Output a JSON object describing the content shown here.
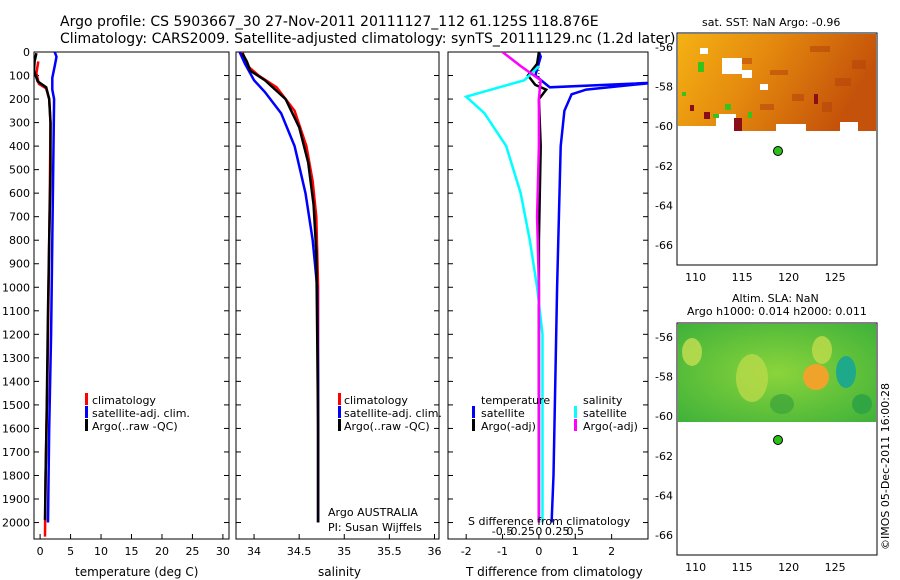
{
  "header": {
    "line1": "Argo profile: CS 5903667_30 27-Nov-2011 20111127_112 61.125S 118.876E",
    "line2": "Climatology: CARS2009. Satellite-adjusted climatology: synTS_20111129.nc (1.2d later)"
  },
  "colors": {
    "climatology": "#ff0000",
    "satellite": "#0000ff",
    "argo": "#000000",
    "sal_satellite": "#00ffff",
    "sal_argo": "#ff00ff"
  },
  "chart_data": [
    {
      "type": "line",
      "title": "",
      "xlabel": "temperature (deg C)",
      "ylabel": "",
      "xlim": [
        -1,
        31
      ],
      "ylim": [
        2070,
        0
      ],
      "xticks": [
        "0",
        "5",
        "10",
        "15",
        "20",
        "25",
        "30"
      ],
      "yticks": [
        "0",
        "100",
        "200",
        "300",
        "400",
        "500",
        "600",
        "700",
        "800",
        "900",
        "1000",
        "1100",
        "1200",
        "1300",
        "1400",
        "1500",
        "1600",
        "1700",
        "1800",
        "1900",
        "2000"
      ],
      "legend": [
        "climatology",
        "satellite-adj. clim.",
        "Argo(..raw -QC)"
      ],
      "series": [
        {
          "name": "climatology",
          "color": "#ff0000",
          "points": [
            [
              -0.3,
              40
            ],
            [
              -0.6,
              90
            ],
            [
              -0.2,
              135
            ],
            [
              1.0,
              155
            ],
            [
              1.5,
              200
            ],
            [
              1.7,
              300
            ],
            [
              1.6,
              600
            ],
            [
              1.4,
              1000
            ],
            [
              1.2,
              1400
            ],
            [
              0.9,
              1800
            ],
            [
              0.8,
              2060
            ]
          ]
        },
        {
          "name": "satellite-adj. clim.",
          "color": "#0000ff",
          "points": [
            [
              2.4,
              0
            ],
            [
              2.7,
              20
            ],
            [
              2.4,
              60
            ],
            [
              2.0,
              110
            ],
            [
              2.0,
              160
            ],
            [
              2.3,
              200
            ],
            [
              2.2,
              400
            ],
            [
              2.0,
              800
            ],
            [
              1.8,
              1200
            ],
            [
              1.5,
              1600
            ],
            [
              1.3,
              2000
            ]
          ]
        },
        {
          "name": "Argo(..raw -QC)",
          "color": "#000000",
          "points": [
            [
              -0.6,
              5
            ],
            [
              -0.9,
              40
            ],
            [
              -1.0,
              80
            ],
            [
              -0.4,
              125
            ],
            [
              1.0,
              150
            ],
            [
              1.5,
              200
            ],
            [
              1.7,
              300
            ],
            [
              1.7,
              500
            ],
            [
              1.5,
              800
            ],
            [
              1.3,
              1100
            ],
            [
              1.1,
              1500
            ],
            [
              0.9,
              1800
            ],
            [
              0.8,
              1990
            ]
          ]
        }
      ]
    },
    {
      "type": "line",
      "title": "",
      "xlabel": "salinity",
      "ylabel": "",
      "xlim": [
        33.8,
        36.05
      ],
      "ylim": [
        2070,
        0
      ],
      "xticks": [
        "34",
        "34.5",
        "35",
        "35.5",
        "36"
      ],
      "yticks": [],
      "legend": [
        "climatology",
        "satellite-adj. clim.",
        "Argo(..raw -QC)"
      ],
      "footer": [
        "Argo AUSTRALIA",
        "PI: Susan Wijffels"
      ],
      "series": [
        {
          "name": "climatology",
          "color": "#ff0000",
          "points": [
            [
              33.87,
              0
            ],
            [
              33.93,
              60
            ],
            [
              34.05,
              100
            ],
            [
              34.25,
              150
            ],
            [
              34.45,
              250
            ],
            [
              34.58,
              400
            ],
            [
              34.65,
              550
            ],
            [
              34.69,
              700
            ],
            [
              34.71,
              1000
            ],
            [
              34.71,
              1500
            ],
            [
              34.71,
              2000
            ]
          ]
        },
        {
          "name": "satellite-adj. clim.",
          "color": "#0000ff",
          "points": [
            [
              33.84,
              0
            ],
            [
              33.9,
              50
            ],
            [
              34.0,
              120
            ],
            [
              34.12,
              170
            ],
            [
              34.3,
              260
            ],
            [
              34.45,
              400
            ],
            [
              34.57,
              600
            ],
            [
              34.65,
              800
            ],
            [
              34.7,
              1000
            ],
            [
              34.71,
              1400
            ],
            [
              34.71,
              2000
            ]
          ]
        },
        {
          "name": "Argo(..raw -QC)",
          "color": "#000000",
          "points": [
            [
              33.87,
              5
            ],
            [
              33.92,
              40
            ],
            [
              33.96,
              80
            ],
            [
              34.12,
              120
            ],
            [
              34.35,
              200
            ],
            [
              34.5,
              320
            ],
            [
              34.6,
              470
            ],
            [
              34.66,
              650
            ],
            [
              34.69,
              850
            ],
            [
              34.7,
              1200
            ],
            [
              34.71,
              1600
            ],
            [
              34.71,
              2000
            ]
          ]
        }
      ]
    },
    {
      "type": "line",
      "title": "",
      "xlabel": "T difference from climatology",
      "ylabel": "",
      "xlim": [
        -2.5,
        3.0
      ],
      "ylim": [
        2070,
        0
      ],
      "xticks": [
        "-2",
        "-1",
        "0",
        "1",
        "2"
      ],
      "top_axis_label": "S difference from climatology",
      "top_ticks": [
        "-0.5",
        "-0.25",
        "0",
        "0.25",
        "0.5"
      ],
      "legend": [
        "temperature",
        "satellite",
        "Argo(-adj)",
        "salinity",
        "satellite",
        "Argo(-adj)"
      ],
      "series": [
        {
          "name": "temperature satellite",
          "color": "#0000ff",
          "points": [
            [
              0.0,
              0
            ],
            [
              0.05,
              20
            ],
            [
              -0.1,
              100
            ],
            [
              0.3,
              150
            ],
            [
              3.2,
              130
            ],
            [
              1.3,
              160
            ],
            [
              0.9,
              180
            ],
            [
              0.7,
              250
            ],
            [
              0.6,
              400
            ],
            [
              0.55,
              700
            ],
            [
              0.5,
              1000
            ],
            [
              0.45,
              1400
            ],
            [
              0.4,
              1800
            ],
            [
              0.35,
              2000
            ]
          ]
        },
        {
          "name": "temperature Argo(-adj)",
          "color": "#000000",
          "points": [
            [
              0.0,
              0
            ],
            [
              -0.05,
              50
            ],
            [
              -0.3,
              100
            ],
            [
              -0.1,
              140
            ],
            [
              0.2,
              160
            ],
            [
              0.0,
              200
            ],
            [
              0.05,
              400
            ],
            [
              0.0,
              800
            ],
            [
              0.0,
              1200
            ],
            [
              0.0,
              2000
            ]
          ]
        },
        {
          "name": "salinity satellite",
          "color": "#00ffff",
          "points": [
            [
              0.0,
              60
            ],
            [
              -0.4,
              120
            ],
            [
              -2.0,
              190
            ],
            [
              -1.5,
              260
            ],
            [
              -0.9,
              400
            ],
            [
              -0.5,
              600
            ],
            [
              -0.25,
              800
            ],
            [
              -0.05,
              1000
            ],
            [
              0.1,
              1200
            ],
            [
              0.1,
              1600
            ],
            [
              0.1,
              2000
            ]
          ]
        },
        {
          "name": "salinity Argo(-adj)",
          "color": "#ff00ff",
          "points": [
            [
              -1.0,
              0
            ],
            [
              -0.5,
              60
            ],
            [
              0.05,
              120
            ],
            [
              0.0,
              200
            ],
            [
              0.0,
              400
            ],
            [
              -0.05,
              700
            ],
            [
              0.0,
              1000
            ],
            [
              0.0,
              1500
            ],
            [
              0.0,
              2000
            ]
          ]
        }
      ]
    },
    {
      "type": "heatmap",
      "title": "sat. SST: NaN Argo: -0.96",
      "xlim": [
        108,
        129.5
      ],
      "ylim": [
        -67,
        -55.3
      ],
      "xticks": [
        "110",
        "115",
        "120",
        "125"
      ],
      "yticks": [
        "-56",
        "-58",
        "-60",
        "-62",
        "-64",
        "-66"
      ],
      "marker": [
        118.876,
        -61.125
      ]
    },
    {
      "type": "heatmap",
      "title": "Altim. SLA: NaN",
      "subtitle": "Argo h1000: 0.014 h2000: 0.011",
      "xlim": [
        108,
        129.5
      ],
      "ylim": [
        -67,
        -55.3
      ],
      "xticks": [
        "110",
        "115",
        "120",
        "125"
      ],
      "yticks": [
        "-56",
        "-58",
        "-60",
        "-62",
        "-64",
        "-66"
      ],
      "marker": [
        118.876,
        -61.125
      ]
    }
  ],
  "credit": "©IMOS 05-Dec-2011 16:00:28"
}
